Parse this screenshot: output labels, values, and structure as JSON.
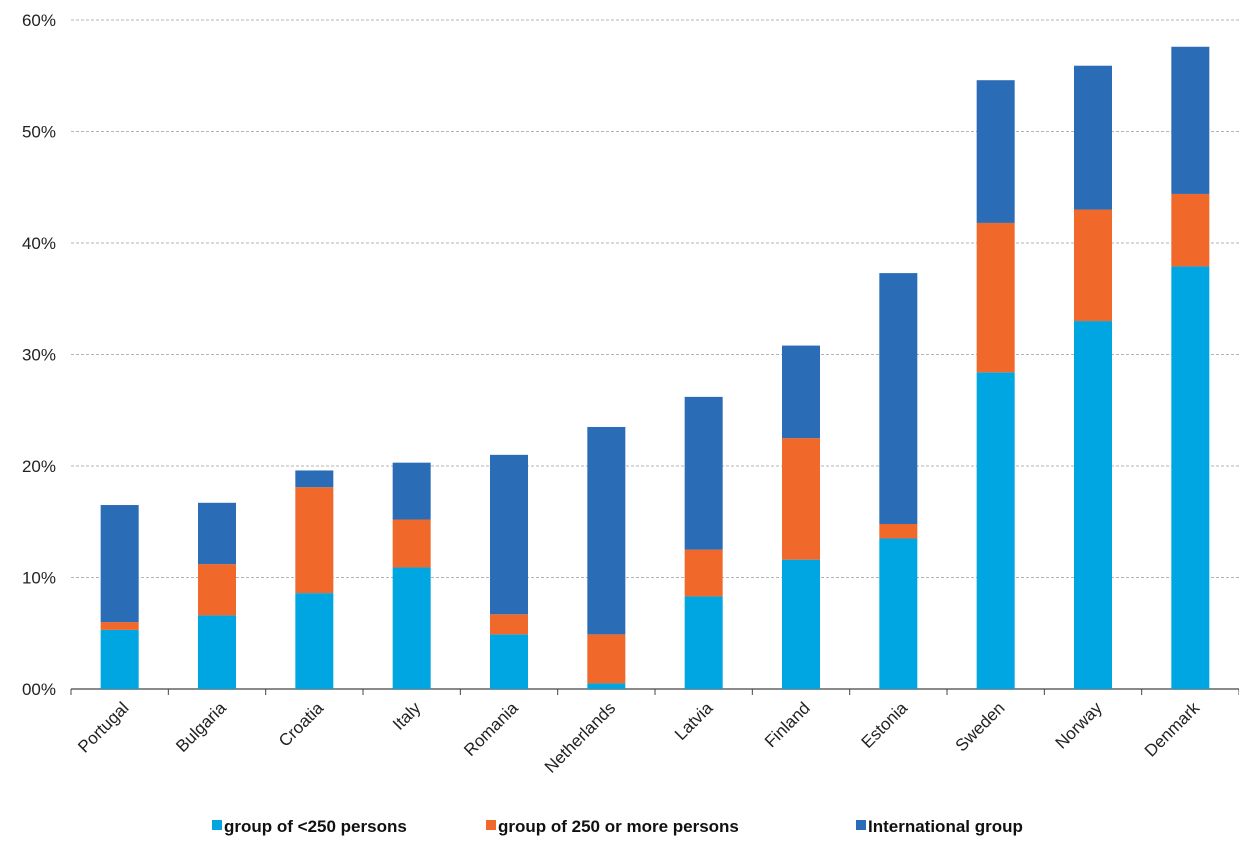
{
  "chart_data": {
    "type": "bar",
    "stacked": true,
    "title": "",
    "xlabel": "",
    "ylabel": "",
    "ylim": [
      0,
      60
    ],
    "y_ticks": [
      {
        "value": 0,
        "label": "00%"
      },
      {
        "value": 10,
        "label": "10%"
      },
      {
        "value": 20,
        "label": "20%"
      },
      {
        "value": 30,
        "label": "30%"
      },
      {
        "value": 40,
        "label": "40%"
      },
      {
        "value": 50,
        "label": "50%"
      },
      {
        "value": 60,
        "label": "60%"
      }
    ],
    "grid": true,
    "legend_position": "bottom",
    "categories": [
      "Portugal",
      "Bulgaria",
      "Croatia",
      "Italy",
      "Romania",
      "Netherlands",
      "Latvia",
      "Finland",
      "Estonia",
      "Sweden",
      "Norway",
      "Denmark"
    ],
    "series": [
      {
        "name": "group of <250 persons",
        "color": "#00a6e2",
        "values": [
          5.3,
          6.6,
          8.6,
          10.9,
          4.9,
          0.5,
          8.3,
          11.6,
          13.5,
          28.4,
          33.0,
          37.9
        ]
      },
      {
        "name": "group of 250 or more persons",
        "color": "#f0682a",
        "values": [
          0.7,
          4.6,
          9.5,
          4.3,
          1.8,
          4.4,
          4.2,
          10.9,
          1.3,
          13.4,
          10.0,
          6.5
        ]
      },
      {
        "name": "International  group",
        "color": "#2a6cb5",
        "values": [
          10.5,
          5.5,
          1.5,
          5.1,
          14.3,
          18.6,
          13.7,
          8.3,
          22.5,
          12.8,
          12.9,
          13.2
        ]
      }
    ]
  }
}
